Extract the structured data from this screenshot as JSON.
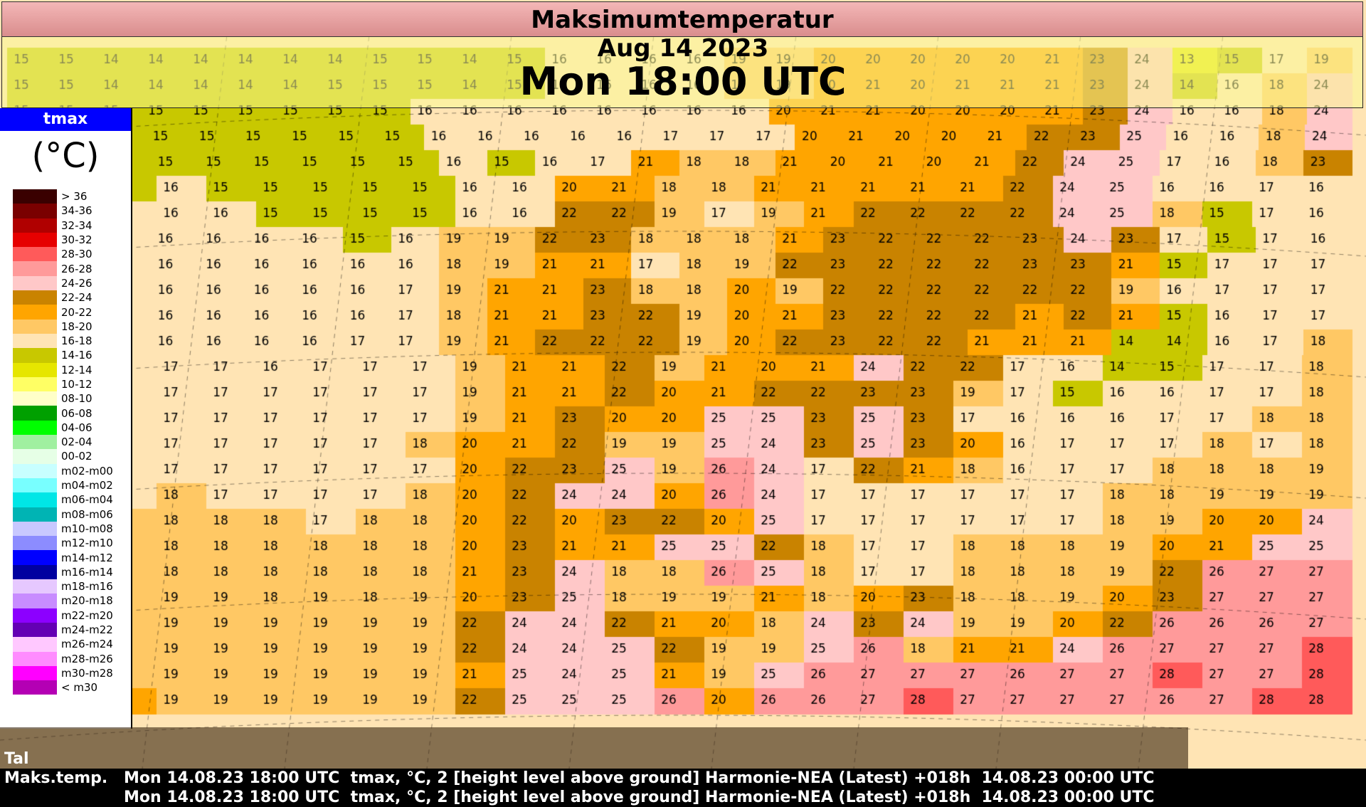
{
  "title": "Maksimumtemperatur",
  "date": "Aug 14 2023",
  "time": "Mon 18:00 UTC",
  "legend": {
    "variable": "tmax",
    "unit": "(°C)",
    "items": [
      {
        "label": "> 36",
        "color": "#3a0000"
      },
      {
        "label": "34-36",
        "color": "#7a0000"
      },
      {
        "label": "32-34",
        "color": "#b00000"
      },
      {
        "label": "30-32",
        "color": "#e60000"
      },
      {
        "label": "28-30",
        "color": "#ff5a5a"
      },
      {
        "label": "26-28",
        "color": "#ff9a9a"
      },
      {
        "label": "24-26",
        "color": "#ffc8c8"
      },
      {
        "label": "22-24",
        "color": "#c98300"
      },
      {
        "label": "20-22",
        "color": "#ffa500"
      },
      {
        "label": "18-20",
        "color": "#ffc864"
      },
      {
        "label": "16-18",
        "color": "#ffe4b4"
      },
      {
        "label": "14-16",
        "color": "#c8c800"
      },
      {
        "label": "12-14",
        "color": "#e6e600"
      },
      {
        "label": "10-12",
        "color": "#ffff64"
      },
      {
        "label": "08-10",
        "color": "#ffffc8"
      },
      {
        "label": "06-08",
        "color": "#00a000"
      },
      {
        "label": "04-06",
        "color": "#00ff00"
      },
      {
        "label": "02-04",
        "color": "#a0f0a0"
      },
      {
        "label": "00-02",
        "color": "#e6ffe6"
      },
      {
        "label": "m02-m00",
        "color": "#c8ffff"
      },
      {
        "label": "m04-m02",
        "color": "#78ffff"
      },
      {
        "label": "m06-m04",
        "color": "#00e6e6"
      },
      {
        "label": "m08-m06",
        "color": "#00b4b4"
      },
      {
        "label": "m10-m08",
        "color": "#c8c8ff"
      },
      {
        "label": "m12-m10",
        "color": "#8c8cff"
      },
      {
        "label": "m14-m12",
        "color": "#0000ff"
      },
      {
        "label": "m16-m14",
        "color": "#0000a0"
      },
      {
        "label": "m18-m16",
        "color": "#e6c8ff"
      },
      {
        "label": "m20-m18",
        "color": "#c88cff"
      },
      {
        "label": "m22-m20",
        "color": "#8c00ff"
      },
      {
        "label": "m24-m22",
        "color": "#6400b4"
      },
      {
        "label": "m26-m24",
        "color": "#ffc8ff"
      },
      {
        "label": "m28-m26",
        "color": "#ff8cff"
      },
      {
        "label": "m30-m28",
        "color": "#ff00ff"
      },
      {
        "label": "< m30",
        "color": "#b400b4"
      }
    ]
  },
  "footer": [
    {
      "left": "Tal",
      "info": "Mon 14.08.23 18:00 UTC  tmax, °C, 2 [height level above ground] Harmonie-NEA (Latest) +018h  14.08.23 00:00 UTC"
    },
    {
      "left": "Maks.temp.",
      "info": "Mon 14.08.23 18:00 UTC  tmax, °C, 2 [height level above ground] Harmonie-NEA (Latest) +018h  14.08.23 00:00 UTC"
    }
  ],
  "grid_values": [
    "15 15 14 14 14 14 14 14 15 15 14 15 16 16 16 16 19 19 20 20 20 20 20 21 23 24 13 15 17 19",
    "15 15 14 14 14 14 14 15 15 15 14 15 16 16 16 16 19 19 20 21 20 21 21 21 23 24 14 16 18 24",
    "15 15 15 15 15 15 15 15 15 16 16 16 16 16 16 16 16 20 21 21 20 20 20 21 23 24 16 16 18 24",
    "15 15 15 15 15 15 15 15 15 16 16 16 16 16 17 17 17 20 21 20 20 21 22 23 25 16 16 18 24",
    "15 15 15 15 15 15 15 15 15 16 15 16 17 21 18 18 21 20 21 20 21 22 24 25 17 16 18 23",
    "15 15 15 16 15 15 15 15 15 16 16 20 21 18 18 21 21 21 21 21 22 24 25 16 16 17 16",
    "15 15 16 16 16 15 15 15 15 16 16 22 22 19 17 19 21 22 22 22 22 24 25 18 15 17 16",
    "15 15 16 16 16 16 16 15 16 19 19 22 23 18 18 18 21 23 22 22 22 23 24 23 17 15 17 16",
    "16 16 16 16 16 16 16 16 16 18 19 21 21 17 18 19 22 23 22 22 22 23 23 21 15 17 17 17",
    "16 16 16 16 16 16 16 16 17 19 21 21 23 18 18 20 19 22 22 22 22 22 22 19 16 17 17 17",
    "16 16 16 16 16 16 16 16 17 18 21 21 23 22 19 20 21 23 22 22 22 21 22 21 15 16 17 17",
    "17 17 17 16 16 16 16 17 17 19 21 22 22 22 19 20 22 23 22 22 21 21 21 14 14 16 17 18",
    "17 17 17 17 17 16 17 17 17 19 21 21 22 19 21 20 21 24 22 22 17 16 14 15 17 17 18",
    "17 17 17 17 17 17 17 17 17 19 21 21 22 20 21 22 22 23 23 19 17 15 16 16 17 17 18",
    "17 17 17 17 17 17 17 17 17 19 21 23 20 20 25 25 23 25 23 17 16 16 16 17 17 18 18",
    "17 17 17 17 17 17 17 17 18 20 21 22 19 19 25 24 23 25 23 20 16 17 17 17 18 17 18",
    "17 17 17 17 17 17 17 17 17 20 22 23 25 19 26 24 17 22 21 18 16 17 17 18 18 18 19",
    "17 17 17 18 17 17 17 17 18 20 22 24 24 20 26 24 17 17 17 17 17 17 18 18 19 19 19",
    "17 18 18 18 18 18 17 18 18 20 22 20 23 22 20 25 17 17 17 17 17 17 18 19 20 20 24",
    "18 18 18 18 18 18 18 18 18 20 23 21 21 25 25 22 18 17 17 18 18 18 19 20 21 25 25",
    "18 18 18 18 18 18 18 18 18 21 23 24 18 18 26 25 18 17 17 18 18 18 19 22 26 27 27",
    "18 18 18 19 19 18 19 18 19 20 23 25 18 19 19 21 18 20 23 18 18 19 20 23 27 27 27",
    "18 19 18 19 19 19 19 19 19 22 24 24 22 21 20 18 24 23 24 19 19 20 22 26 26 26 27",
    "18 19 18 19 19 19 19 19 19 22 24 24 25 22 19 19 25 26 18 21 21 24 26 27 27 27 28",
    "19 19 19 19 19 19 19 19 19 21 25 24 25 21 19 25 26 27 27 27 26 27 27 28 27 27 28",
    "19 20 20 19 19 19 19 19 19 22 25 25 25 26 20 26 26 27 28 27 27 27 27 26 27 28 28"
  ]
}
